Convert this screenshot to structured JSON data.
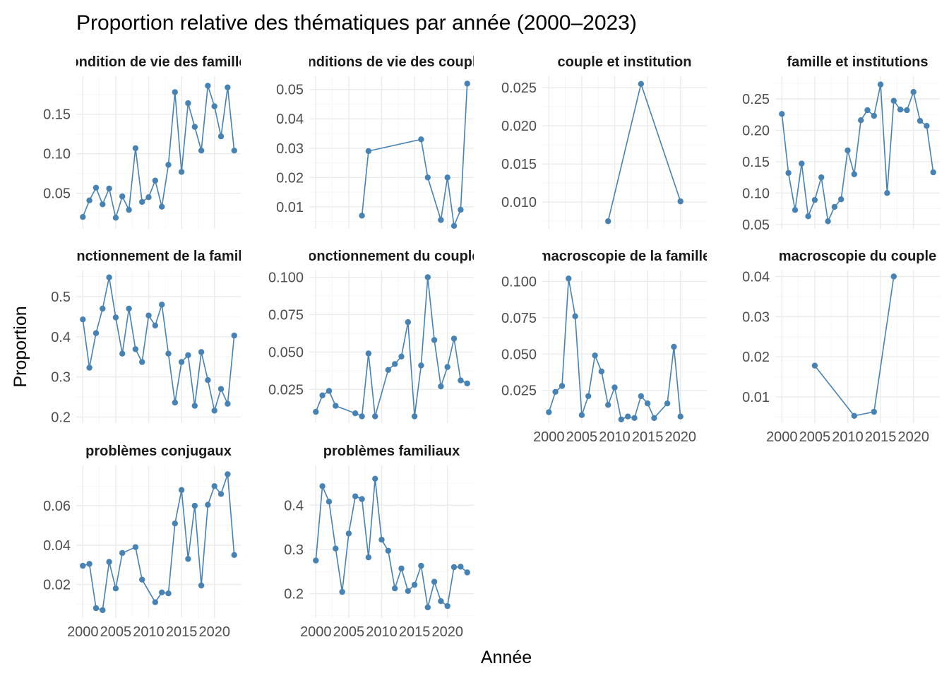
{
  "title": "Proportion relative des thématiques par année (2000–2023)",
  "xlabel": "Année",
  "ylabel": "Proportion",
  "colors": {
    "series": "#4682b4",
    "grid": "#ebebeb",
    "background": "#ffffff"
  },
  "chart_data": {
    "type": "line",
    "facet_layout": {
      "columns": 4,
      "scales": "free_y",
      "shared_x": true
    },
    "x_ticks": [
      2000,
      2005,
      2010,
      2015,
      2020
    ],
    "xlim": [
      1999,
      2024
    ],
    "panels": [
      {
        "title": "condition de vie des familles",
        "ylim": [
          0.005,
          0.198
        ],
        "yticks": [
          0.05,
          0.1,
          0.15
        ],
        "tick_labels": [
          "0.05",
          "0.10",
          "0.15"
        ],
        "points": [
          [
            2000,
            0.02
          ],
          [
            2001,
            0.041
          ],
          [
            2002,
            0.057
          ],
          [
            2003,
            0.036
          ],
          [
            2004,
            0.056
          ],
          [
            2005,
            0.019
          ],
          [
            2006,
            0.046
          ],
          [
            2007,
            0.029
          ],
          [
            2008,
            0.107
          ],
          [
            2009,
            0.039
          ],
          [
            2010,
            0.045
          ],
          [
            2011,
            0.066
          ],
          [
            2012,
            0.033
          ],
          [
            2013,
            0.086
          ],
          [
            2014,
            0.178
          ],
          [
            2015,
            0.077
          ],
          [
            2016,
            0.164
          ],
          [
            2017,
            0.134
          ],
          [
            2018,
            0.104
          ],
          [
            2019,
            0.186
          ],
          [
            2020,
            0.16
          ],
          [
            2021,
            0.122
          ],
          [
            2022,
            0.184
          ],
          [
            2023,
            0.104
          ]
        ]
      },
      {
        "title": "conditions de vie des couples",
        "ylim": [
          0.0025,
          0.0545
        ],
        "yticks": [
          0.01,
          0.02,
          0.03,
          0.04,
          0.05
        ],
        "tick_labels": [
          "0.01",
          "0.02",
          "0.03",
          "0.04",
          "0.05"
        ],
        "points": [
          [
            2007,
            0.007
          ],
          [
            2008,
            0.029
          ],
          [
            2016,
            0.033
          ],
          [
            2017,
            0.02
          ],
          [
            2019,
            0.0055
          ],
          [
            2020,
            0.02
          ],
          [
            2021,
            0.0035
          ],
          [
            2022,
            0.009
          ],
          [
            2023,
            0.052
          ]
        ]
      },
      {
        "title": "couple et institution",
        "ylim": [
          0.0065,
          0.0265
        ],
        "yticks": [
          0.01,
          0.015,
          0.02,
          0.025
        ],
        "tick_labels": [
          "0.010",
          "0.015",
          "0.020",
          "0.025"
        ],
        "points": [
          [
            2009,
            0.0075
          ],
          [
            2014,
            0.0255
          ],
          [
            2020,
            0.0101
          ]
        ]
      },
      {
        "title": "famille et institutions",
        "ylim": [
          0.043,
          0.286
        ],
        "yticks": [
          0.05,
          0.1,
          0.15,
          0.2,
          0.25
        ],
        "tick_labels": [
          "0.05",
          "0.10",
          "0.15",
          "0.20",
          "0.25"
        ],
        "points": [
          [
            2000,
            0.226
          ],
          [
            2001,
            0.132
          ],
          [
            2002,
            0.073
          ],
          [
            2003,
            0.147
          ],
          [
            2004,
            0.063
          ],
          [
            2005,
            0.089
          ],
          [
            2006,
            0.125
          ],
          [
            2007,
            0.055
          ],
          [
            2008,
            0.078
          ],
          [
            2009,
            0.09
          ],
          [
            2010,
            0.168
          ],
          [
            2011,
            0.13
          ],
          [
            2012,
            0.216
          ],
          [
            2013,
            0.232
          ],
          [
            2014,
            0.223
          ],
          [
            2015,
            0.273
          ],
          [
            2016,
            0.1
          ],
          [
            2017,
            0.247
          ],
          [
            2018,
            0.233
          ],
          [
            2019,
            0.232
          ],
          [
            2020,
            0.261
          ],
          [
            2021,
            0.215
          ],
          [
            2022,
            0.207
          ],
          [
            2023,
            0.133
          ]
        ]
      },
      {
        "title": "fonctionnement de la famille",
        "ylim": [
          0.185,
          0.565
        ],
        "yticks": [
          0.2,
          0.3,
          0.4,
          0.5
        ],
        "tick_labels": [
          "0.2",
          "0.3",
          "0.4",
          "0.5"
        ],
        "points": [
          [
            2000,
            0.443
          ],
          [
            2001,
            0.323
          ],
          [
            2002,
            0.409
          ],
          [
            2003,
            0.47
          ],
          [
            2004,
            0.548
          ],
          [
            2005,
            0.448
          ],
          [
            2006,
            0.358
          ],
          [
            2007,
            0.47
          ],
          [
            2008,
            0.369
          ],
          [
            2009,
            0.337
          ],
          [
            2010,
            0.453
          ],
          [
            2011,
            0.428
          ],
          [
            2012,
            0.48
          ],
          [
            2013,
            0.358
          ],
          [
            2014,
            0.236
          ],
          [
            2015,
            0.337
          ],
          [
            2016,
            0.354
          ],
          [
            2017,
            0.228
          ],
          [
            2018,
            0.362
          ],
          [
            2019,
            0.292
          ],
          [
            2020,
            0.216
          ],
          [
            2021,
            0.27
          ],
          [
            2022,
            0.233
          ],
          [
            2023,
            0.403
          ]
        ]
      },
      {
        "title": "fonctionnement du couple",
        "ylim": [
          0.0025,
          0.1045
        ],
        "yticks": [
          0.025,
          0.05,
          0.075,
          0.1
        ],
        "tick_labels": [
          "0.025",
          "0.050",
          "0.075",
          "0.100"
        ],
        "points": [
          [
            2000,
            0.01
          ],
          [
            2001,
            0.021
          ],
          [
            2002,
            0.024
          ],
          [
            2003,
            0.014
          ],
          [
            2006,
            0.009
          ],
          [
            2007,
            0.007
          ],
          [
            2008,
            0.049
          ],
          [
            2009,
            0.007
          ],
          [
            2011,
            0.038
          ],
          [
            2012,
            0.042
          ],
          [
            2013,
            0.047
          ],
          [
            2014,
            0.07
          ],
          [
            2015,
            0.007
          ],
          [
            2016,
            0.041
          ],
          [
            2017,
            0.1
          ],
          [
            2018,
            0.058
          ],
          [
            2019,
            0.027
          ],
          [
            2020,
            0.04
          ],
          [
            2021,
            0.059
          ],
          [
            2022,
            0.031
          ],
          [
            2023,
            0.029
          ]
        ]
      },
      {
        "title": "macroscopie de la famille",
        "ylim": [
          0.0025,
          0.1075
        ],
        "yticks": [
          0.025,
          0.05,
          0.075,
          0.1
        ],
        "tick_labels": [
          "0.025",
          "0.050",
          "0.075",
          "0.100"
        ],
        "points": [
          [
            2000,
            0.01
          ],
          [
            2001,
            0.024
          ],
          [
            2002,
            0.028
          ],
          [
            2003,
            0.102
          ],
          [
            2004,
            0.076
          ],
          [
            2005,
            0.008
          ],
          [
            2006,
            0.021
          ],
          [
            2007,
            0.049
          ],
          [
            2008,
            0.038
          ],
          [
            2009,
            0.015
          ],
          [
            2010,
            0.027
          ],
          [
            2011,
            0.005
          ],
          [
            2012,
            0.007
          ],
          [
            2013,
            0.006
          ],
          [
            2014,
            0.021
          ],
          [
            2015,
            0.016
          ],
          [
            2016,
            0.006
          ],
          [
            2018,
            0.016
          ],
          [
            2019,
            0.055
          ],
          [
            2020,
            0.007
          ]
        ]
      },
      {
        "title": "macroscopie du couple",
        "ylim": [
          0.0035,
          0.0415
        ],
        "yticks": [
          0.01,
          0.02,
          0.03,
          0.04
        ],
        "tick_labels": [
          "0.01",
          "0.02",
          "0.03",
          "0.04"
        ],
        "points": [
          [
            2005,
            0.0178
          ],
          [
            2011,
            0.0053
          ],
          [
            2014,
            0.0063
          ],
          [
            2017,
            0.04
          ]
        ]
      },
      {
        "title": "problèmes conjugaux",
        "ylim": [
          0.003,
          0.0805
        ],
        "yticks": [
          0.02,
          0.04,
          0.06
        ],
        "tick_labels": [
          "0.02",
          "0.04",
          "0.06"
        ],
        "points": [
          [
            2000,
            0.0295
          ],
          [
            2001,
            0.0305
          ],
          [
            2002,
            0.008
          ],
          [
            2003,
            0.007
          ],
          [
            2004,
            0.0315
          ],
          [
            2005,
            0.018
          ],
          [
            2006,
            0.036
          ],
          [
            2008,
            0.039
          ],
          [
            2009,
            0.0225
          ],
          [
            2011,
            0.011
          ],
          [
            2012,
            0.016
          ],
          [
            2013,
            0.0155
          ],
          [
            2014,
            0.051
          ],
          [
            2015,
            0.068
          ],
          [
            2016,
            0.033
          ],
          [
            2017,
            0.06
          ],
          [
            2018,
            0.0195
          ],
          [
            2019,
            0.0605
          ],
          [
            2020,
            0.07
          ],
          [
            2021,
            0.066
          ],
          [
            2022,
            0.076
          ],
          [
            2023,
            0.035
          ]
        ]
      },
      {
        "title": "problèmes familiaux",
        "ylim": [
          0.145,
          0.49
        ],
        "yticks": [
          0.2,
          0.3,
          0.4
        ],
        "tick_labels": [
          "0.2",
          "0.3",
          "0.4"
        ],
        "points": [
          [
            2000,
            0.275
          ],
          [
            2001,
            0.443
          ],
          [
            2002,
            0.408
          ],
          [
            2003,
            0.302
          ],
          [
            2004,
            0.204
          ],
          [
            2005,
            0.336
          ],
          [
            2006,
            0.42
          ],
          [
            2007,
            0.414
          ],
          [
            2008,
            0.282
          ],
          [
            2009,
            0.46
          ],
          [
            2010,
            0.322
          ],
          [
            2011,
            0.297
          ],
          [
            2012,
            0.212
          ],
          [
            2013,
            0.257
          ],
          [
            2014,
            0.206
          ],
          [
            2015,
            0.22
          ],
          [
            2016,
            0.263
          ],
          [
            2017,
            0.169
          ],
          [
            2018,
            0.227
          ],
          [
            2019,
            0.183
          ],
          [
            2020,
            0.172
          ],
          [
            2021,
            0.26
          ],
          [
            2022,
            0.261
          ],
          [
            2023,
            0.248
          ]
        ]
      }
    ]
  }
}
